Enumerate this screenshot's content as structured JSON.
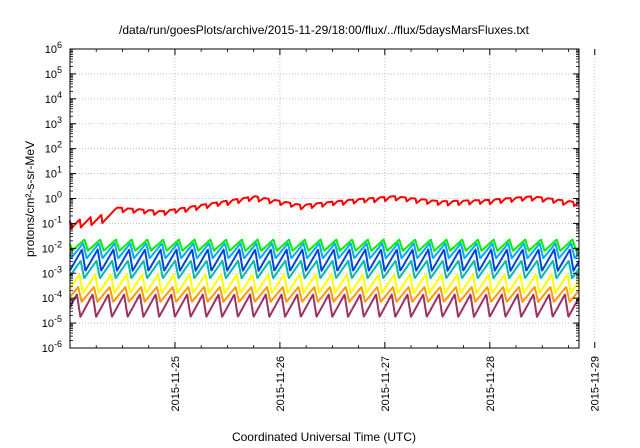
{
  "chart_data": {
    "type": "line",
    "title": "/data/run/goesPlots/archive/2015-11-29/18:00/flux/../flux/5daysMarsFluxes.txt",
    "xlabel": "Coordinated Universal Time (UTC)",
    "ylabel": "protons/cm²-s-sr-MeV",
    "yscale": "log",
    "ylim_exp": [
      -6,
      6
    ],
    "y_tick_base": "10",
    "y_tick_exponents": [
      "-6",
      "-5",
      "-4",
      "-3",
      "-2",
      "-1",
      "0",
      "1",
      "2",
      "3",
      "4",
      "5",
      "6"
    ],
    "xlim_days": [
      -1.0,
      3.85
    ],
    "x_ticks": [
      "2015-11-25",
      "2015-11-26",
      "2015-11-27",
      "2015-11-28",
      "2015-11-29"
    ],
    "grid": true,
    "legend": "none",
    "series": [
      {
        "color": "#ff0000",
        "period_days": 1.0,
        "amp_exp": 0.8,
        "offset_exp": -0.35,
        "phase_days": 0.6,
        "anchor_exp": [
          -0.8,
          -0.45,
          -0.6,
          -0.3,
          0.0,
          -0.35,
          -0.15,
          0.0,
          -0.2,
          -0.15,
          0.0,
          -0.25
        ]
      },
      {
        "color": "#00ee00",
        "period_days": 0.15,
        "low_exp": -2.1,
        "high_exp": -1.65
      },
      {
        "color": "#00aaff",
        "period_days": 0.15,
        "low_exp": -2.4,
        "high_exp": -1.8
      },
      {
        "color": "#0044dd",
        "period_days": 0.15,
        "low_exp": -2.9,
        "high_exp": -2.05
      },
      {
        "color": "#00bbaa",
        "period_days": 0.15,
        "low_exp": -3.2,
        "high_exp": -2.5
      },
      {
        "color": "#ffff00",
        "period_days": 0.15,
        "low_exp": -3.8,
        "high_exp": -3.05
      },
      {
        "color": "#ff9900",
        "period_days": 0.15,
        "low_exp": -4.15,
        "high_exp": -3.55
      },
      {
        "color": "#993366",
        "period_days": 0.15,
        "low_exp": -4.75,
        "high_exp": -3.85
      }
    ]
  }
}
